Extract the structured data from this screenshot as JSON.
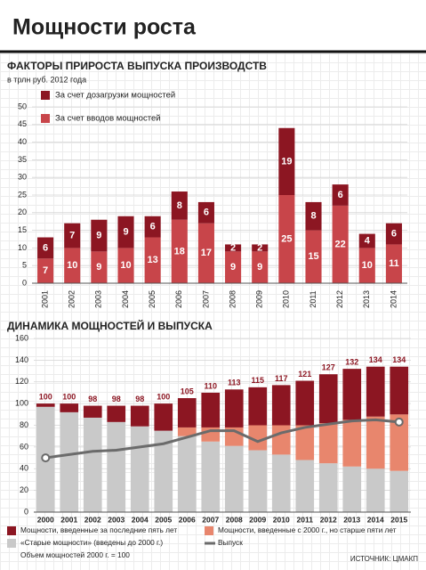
{
  "header": {
    "title": "Мощности роста"
  },
  "chart_data": [
    {
      "type": "bar",
      "stacked": true,
      "title": "ФАКТОРЫ ПРИРОСТА ВЫПУСКА ПРОИЗВОДСТВ",
      "subtitle": "в трлн руб. 2012 года",
      "categories": [
        "2001",
        "2002",
        "2003",
        "2004",
        "2005",
        "2006",
        "2007",
        "2008",
        "2009",
        "2010",
        "2011",
        "2012",
        "2013",
        "2014"
      ],
      "series": [
        {
          "name": "За счет вводов мощностей",
          "color": "#c8454a",
          "values": [
            7,
            10,
            9,
            10,
            13,
            18,
            17,
            9,
            9,
            25,
            15,
            22,
            10,
            11
          ]
        },
        {
          "name": "За счет дозагрузки мощностей",
          "color": "#8c1622",
          "values": [
            6,
            7,
            9,
            9,
            6,
            8,
            6,
            2,
            2,
            19,
            8,
            6,
            4,
            6
          ]
        }
      ],
      "ylim": [
        0,
        50
      ],
      "yticks": [
        0,
        5,
        10,
        15,
        20,
        25,
        30,
        35,
        40,
        45,
        50
      ],
      "grid": true,
      "legend": "top-left"
    },
    {
      "type": "bar",
      "stacked": true,
      "title": "ДИНАМИКА МОЩНОСТЕЙ И ВЫПУСКА",
      "categories": [
        "2000",
        "2001",
        "2002",
        "2003",
        "2004",
        "2005",
        "2006",
        "2007",
        "2008",
        "2009",
        "2010",
        "2011",
        "2012",
        "2013",
        "2014",
        "2015"
      ],
      "series": [
        {
          "name": "«Старые мощности» (введены до 2000 г.)",
          "color": "#c9c9c9",
          "values": [
            97,
            92,
            87,
            83,
            79,
            75,
            70,
            65,
            61,
            57,
            53,
            48,
            45,
            42,
            40,
            38
          ]
        },
        {
          "name": "Мощности, введенные с 2000 г., но старше пяти лет",
          "color": "#e8866d",
          "values": [
            0,
            0,
            0,
            0,
            0,
            0,
            8,
            13,
            17,
            23,
            27,
            32,
            37,
            43,
            48,
            52
          ]
        },
        {
          "name": "Мощности, введенные за последние пять лет",
          "color": "#8c1622",
          "values": [
            3,
            8,
            11,
            15,
            19,
            25,
            27,
            32,
            35,
            35,
            37,
            41,
            45,
            47,
            46,
            44
          ]
        },
        {
          "name": "Выпуск",
          "type": "line",
          "color": "#6b6b6b",
          "values": [
            50,
            53,
            56,
            57,
            60,
            63,
            69,
            75,
            75,
            65,
            73,
            78,
            81,
            84,
            85,
            83
          ]
        }
      ],
      "totals": [
        100,
        100,
        98,
        98,
        98,
        100,
        105,
        110,
        113,
        115,
        117,
        121,
        127,
        132,
        134,
        134
      ],
      "note": "Объем мощностей 2000 г. = 100",
      "ylim": [
        0,
        160
      ],
      "yticks": [
        0,
        20,
        40,
        60,
        80,
        100,
        120,
        140,
        160
      ],
      "grid": true,
      "legend": "bottom"
    }
  ],
  "source": "ИСТОЧНИК: ЦМАКП"
}
